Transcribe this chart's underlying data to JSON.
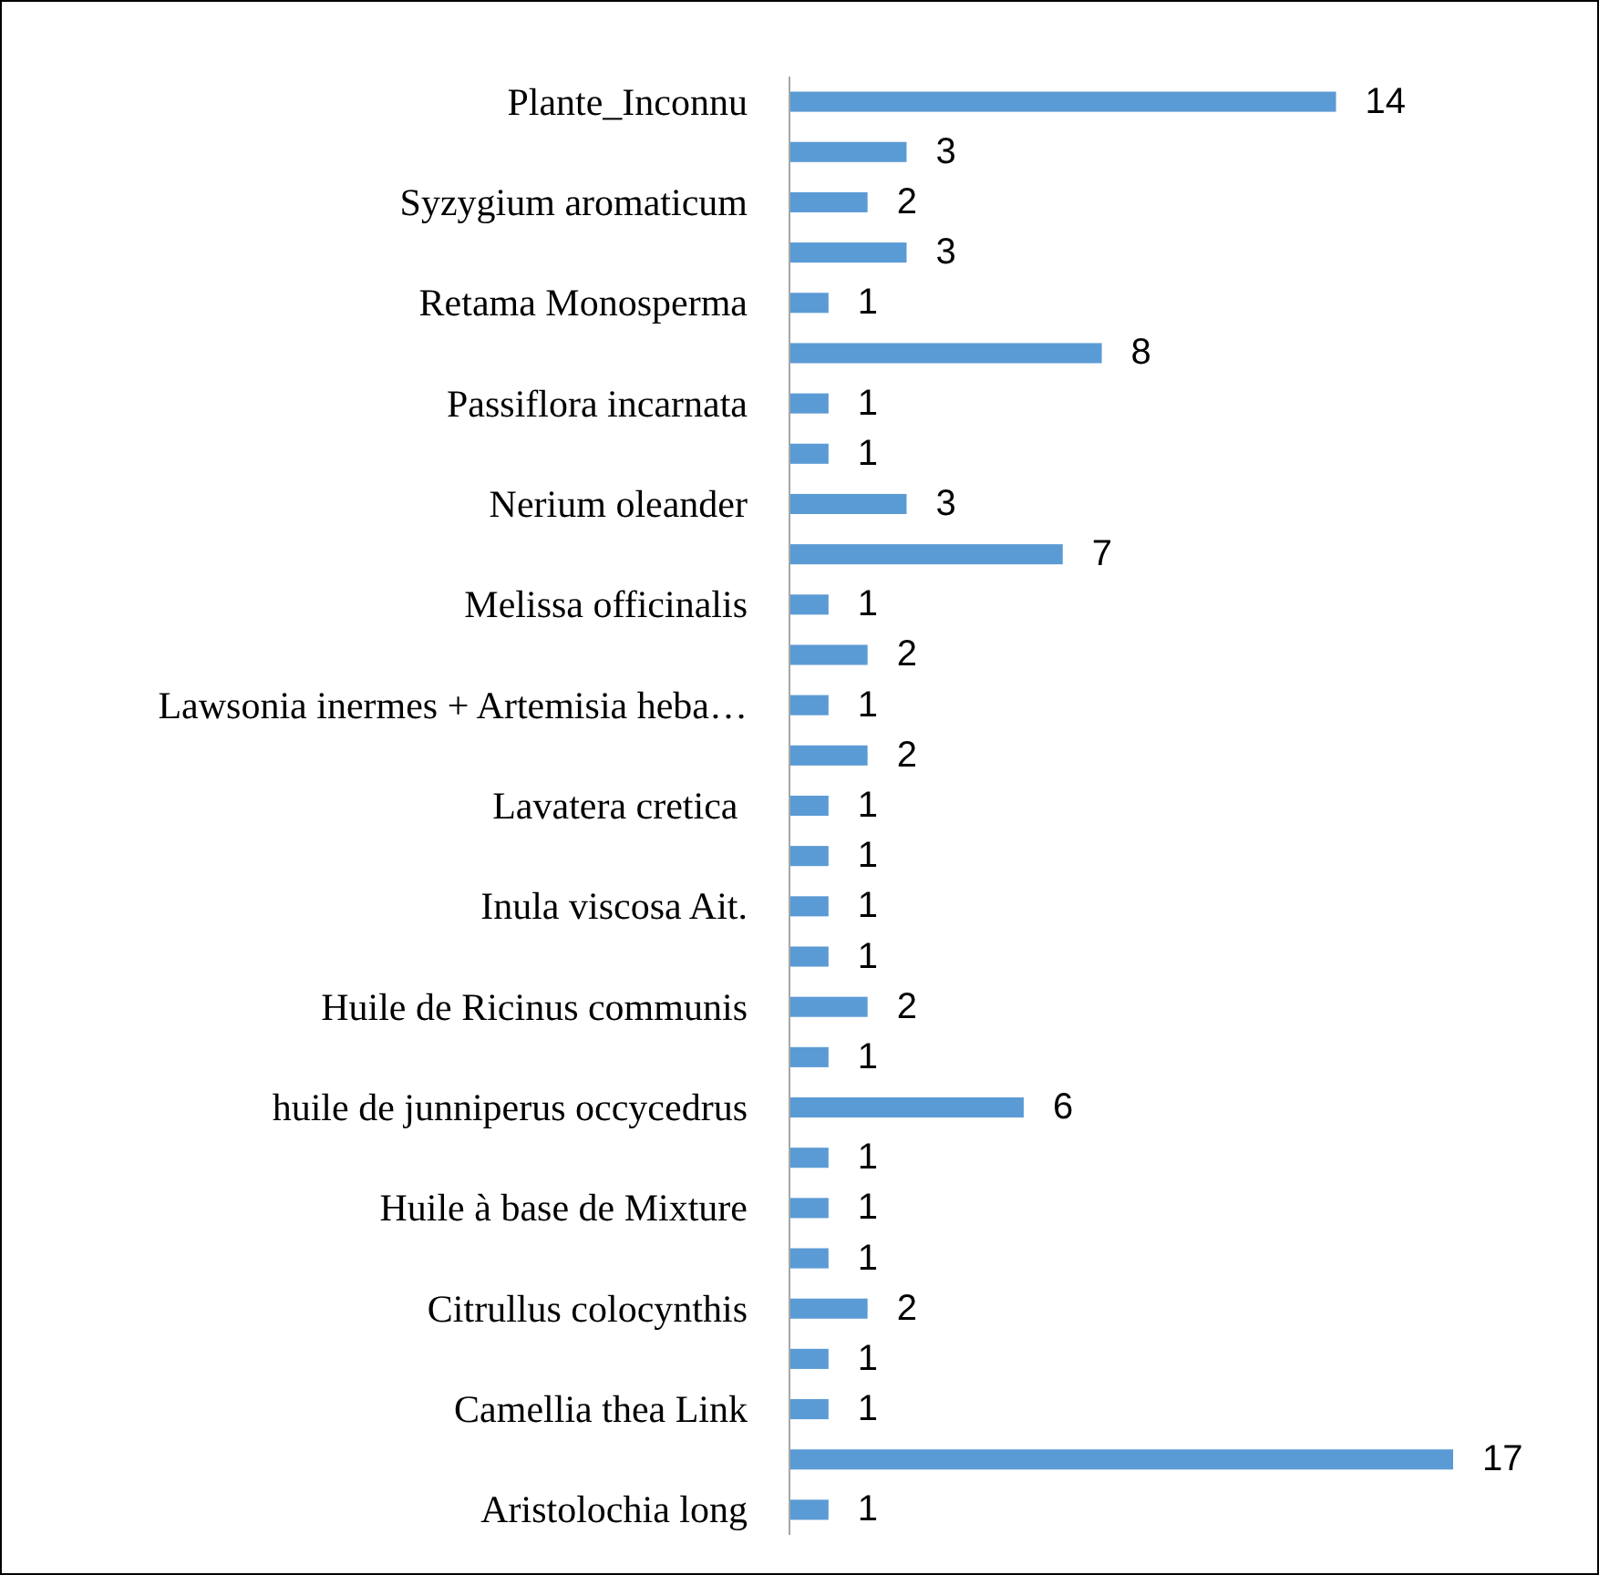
{
  "chart_data": {
    "type": "bar",
    "orientation": "horizontal",
    "categories": [
      "Plante_Inconnu",
      null,
      "Syzygium aromaticum",
      null,
      "Retama Monosperma",
      null,
      "Passiflora incarnata",
      null,
      "Nerium oleander",
      null,
      "Melissa officinalis",
      null,
      "Lawsonia inermes + Artemisia heba…",
      null,
      "Lavatera cretica ",
      null,
      "Inula viscosa Ait.",
      null,
      "Huile de Ricinus communis",
      null,
      "huile de junniperus occycedrus",
      null,
      "Huile à base de Mixture",
      null,
      "Citrullus colocynthis",
      null,
      "Camellia thea Link",
      null,
      "Aristolochia long"
    ],
    "values": [
      14,
      3,
      2,
      3,
      1,
      8,
      1,
      1,
      3,
      7,
      1,
      2,
      1,
      2,
      1,
      1,
      1,
      1,
      2,
      1,
      6,
      1,
      1,
      1,
      2,
      1,
      1,
      17,
      1
    ],
    "color": "#5b9bd5",
    "xlim": [
      0,
      17
    ],
    "data_labels": true
  }
}
